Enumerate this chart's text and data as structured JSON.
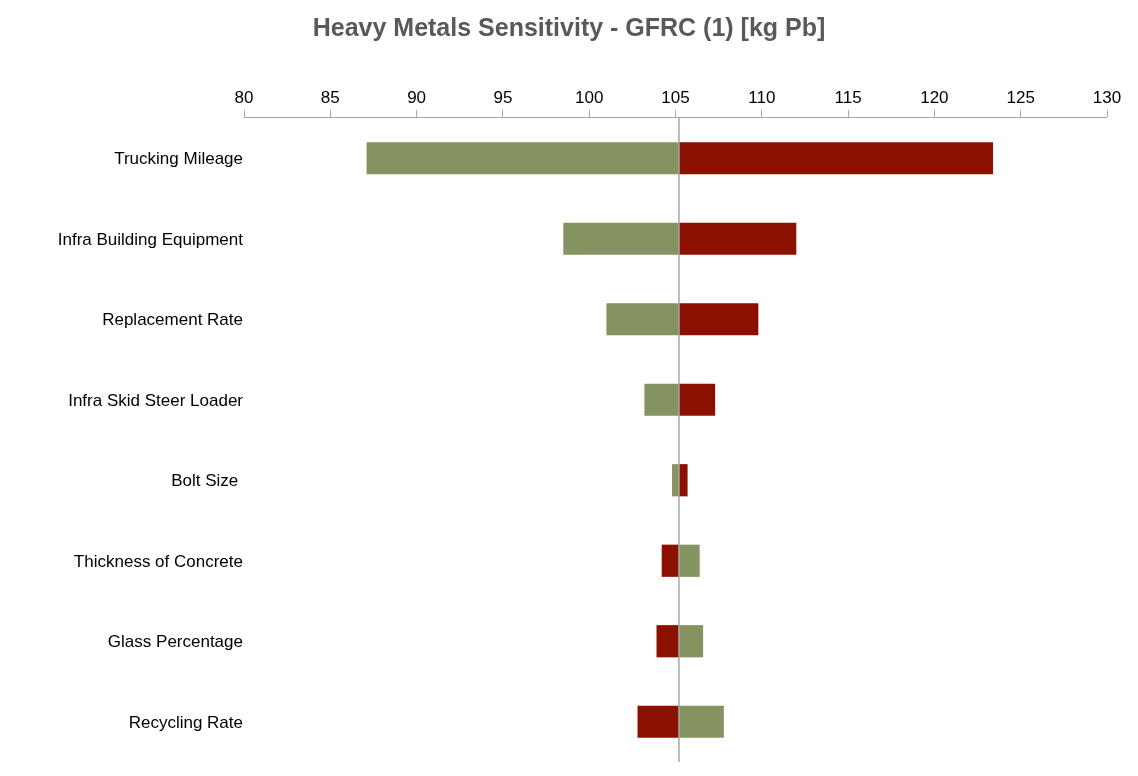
{
  "chart_data": {
    "type": "bar",
    "orientation": "horizontal",
    "title": "Heavy Metals Sensitivity - GFRC (1) [kg Pb]",
    "categories": [
      "Trucking Mileage",
      "Infra Building Equipment",
      "Replacement Rate",
      "Infra Skid Steer Loader",
      "Bolt Size ",
      "Thickness of Concrete",
      "Glass Percentage",
      "Recycling Rate"
    ],
    "series": [
      {
        "color": "#84935f",
        "base": [
          87.1,
          98.5,
          101.0,
          103.2,
          104.8,
          105.2,
          105.2,
          105.2
        ],
        "values": [
          18.1,
          6.7,
          4.2,
          2.0,
          0.4,
          1.2,
          1.4,
          2.6
        ]
      },
      {
        "color": "#8b1000",
        "base": [
          105.2,
          105.2,
          105.2,
          105.2,
          105.2,
          104.2,
          103.9,
          102.8
        ],
        "values": [
          18.2,
          6.8,
          4.6,
          2.1,
          0.5,
          1.0,
          1.3,
          2.4
        ]
      }
    ],
    "xlim": [
      80,
      130
    ],
    "xticks": [
      80,
      85,
      90,
      95,
      100,
      105,
      110,
      115,
      120,
      125,
      130
    ],
    "ref_lines": [
      {
        "axis": "x",
        "value": 105.2,
        "color": "#a6a6a6"
      }
    ]
  }
}
